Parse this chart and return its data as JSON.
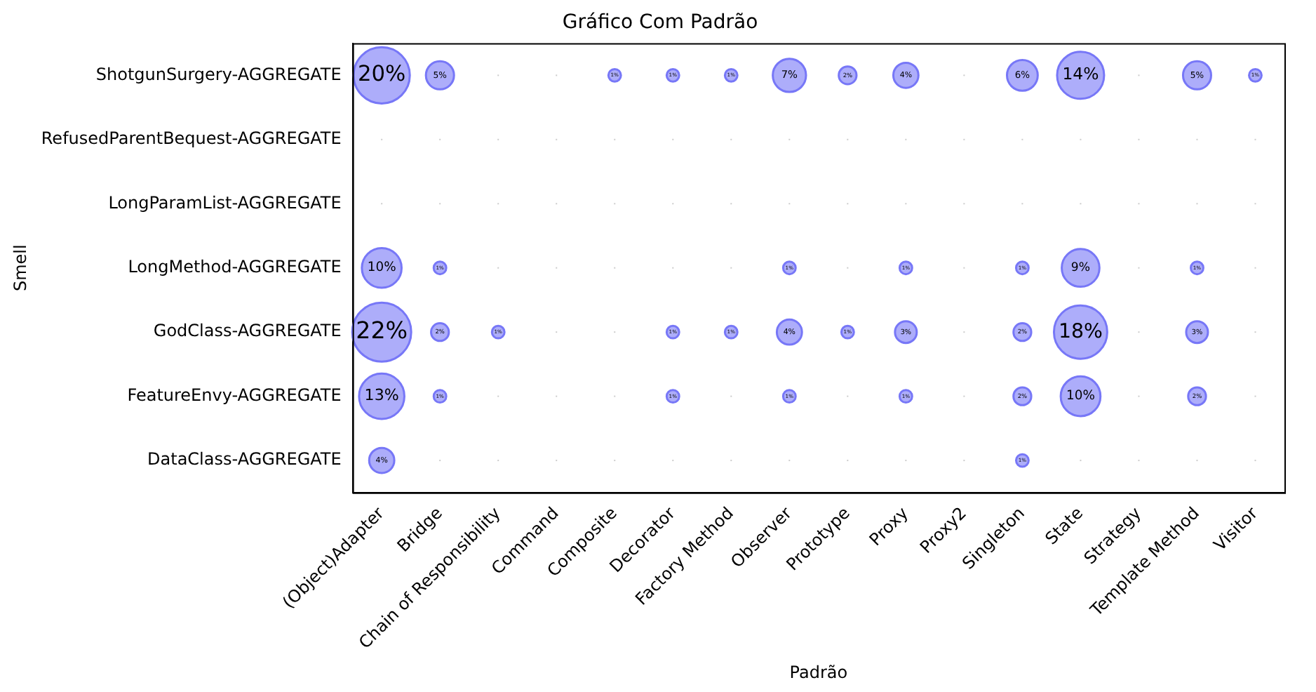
{
  "chart_data": {
    "type": "heatmap",
    "title": "Gráfico Com Padrão",
    "xlabel": "Padrão",
    "ylabel": "Smell",
    "color": "#7777f7",
    "categories": [
      "(Object)Adapter",
      "Bridge",
      "Chain of Responsibility",
      "Command",
      "Composite",
      "Decorator",
      "Factory Method",
      "Observer",
      "Prototype",
      "Proxy",
      "Proxy2",
      "Singleton",
      "State",
      "Strategy",
      "Template Method",
      "Visitor"
    ],
    "y_categories": [
      "ShotgunSurgery-AGGREGATE",
      "RefusedParentBequest-AGGREGATE",
      "LongParamList-AGGREGATE",
      "LongMethod-AGGREGATE",
      "GodClass-AGGREGATE",
      "FeatureEnvy-AGGREGATE",
      "DataClass-AGGREGATE"
    ],
    "cells": [
      [
        20,
        5,
        null,
        null,
        1,
        1,
        1,
        7,
        2,
        4,
        null,
        6,
        14,
        null,
        5,
        1
      ],
      [
        null,
        null,
        null,
        null,
        null,
        null,
        null,
        null,
        null,
        null,
        null,
        null,
        null,
        null,
        null,
        null
      ],
      [
        null,
        null,
        null,
        null,
        null,
        null,
        null,
        null,
        null,
        null,
        null,
        null,
        null,
        null,
        null,
        null
      ],
      [
        10,
        1,
        null,
        null,
        null,
        null,
        null,
        1,
        null,
        1,
        null,
        1,
        9,
        null,
        1,
        null
      ],
      [
        22,
        2,
        1,
        null,
        null,
        1,
        1,
        4,
        1,
        3,
        null,
        2,
        18,
        null,
        3,
        null
      ],
      [
        13,
        1,
        null,
        null,
        null,
        1,
        null,
        1,
        null,
        1,
        null,
        2,
        10,
        null,
        2,
        null
      ],
      [
        4,
        null,
        null,
        null,
        null,
        null,
        null,
        null,
        null,
        null,
        null,
        1,
        null,
        null,
        null,
        null
      ]
    ],
    "cell_labels": [
      [
        "20%",
        "5%",
        null,
        null,
        "1%",
        "1%",
        "1%",
        "7%",
        "2%",
        "4%",
        null,
        "6%",
        "14%",
        null,
        "5%",
        "1%"
      ],
      [
        null,
        null,
        null,
        null,
        null,
        null,
        null,
        null,
        null,
        null,
        null,
        null,
        null,
        null,
        null,
        null
      ],
      [
        null,
        null,
        null,
        null,
        null,
        null,
        null,
        null,
        null,
        null,
        null,
        null,
        null,
        null,
        null,
        null
      ],
      [
        "10%",
        "1%",
        null,
        null,
        null,
        null,
        null,
        "1%",
        null,
        "1%",
        null,
        "1%",
        "9%",
        null,
        "1%",
        null
      ],
      [
        "22%",
        "2%",
        "1%",
        null,
        null,
        "1%",
        "1%",
        "4%",
        "1%",
        "3%",
        null,
        "2%",
        "18%",
        null,
        "3%",
        null
      ],
      [
        "13%",
        "1%",
        null,
        null,
        null,
        "1%",
        null,
        "1%",
        null,
        "1%",
        null,
        "2%",
        "10%",
        null,
        "2%",
        null
      ],
      [
        "4%",
        null,
        null,
        null,
        null,
        null,
        null,
        null,
        null,
        null,
        null,
        "1%",
        null,
        null,
        null,
        null
      ]
    ]
  }
}
